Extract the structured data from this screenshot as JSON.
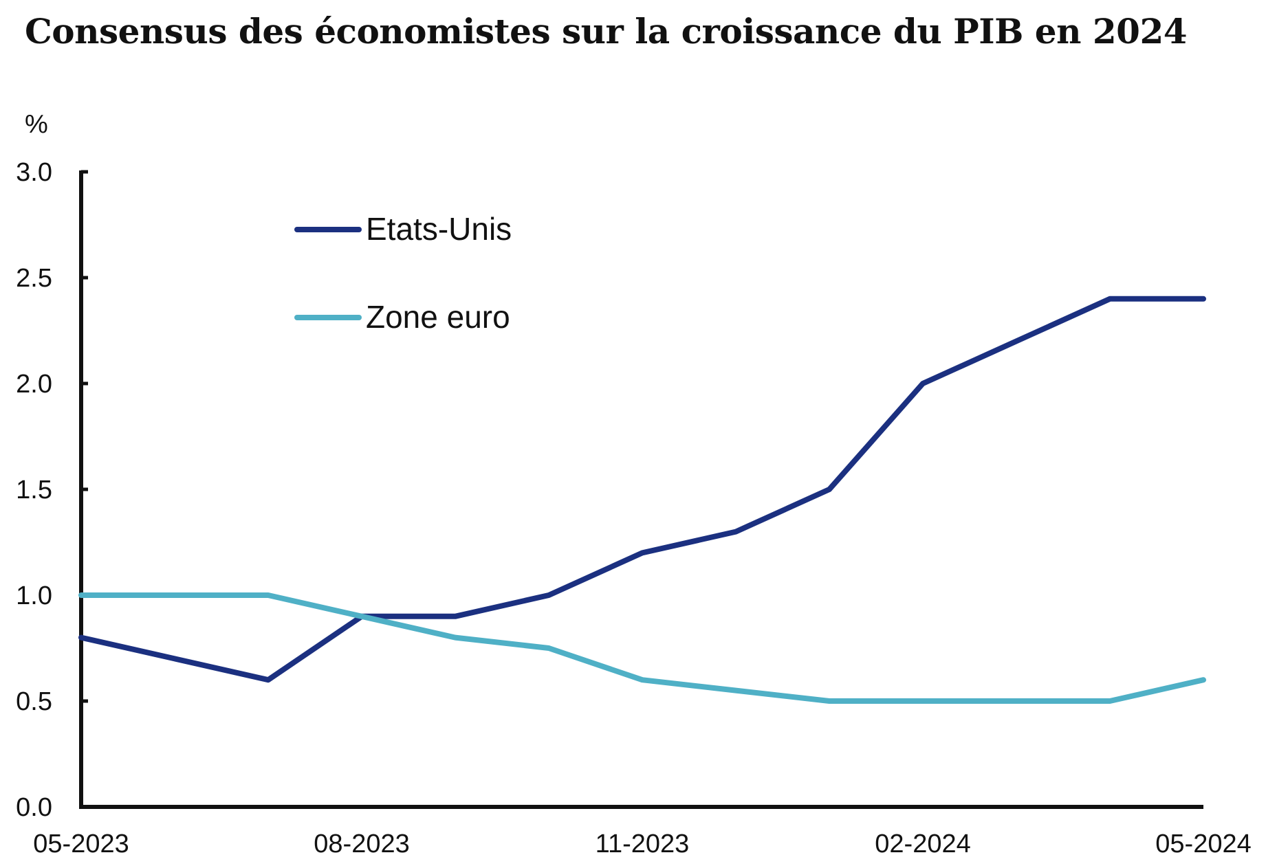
{
  "title": "Consensus des économistes sur la croissance du PIB en 2024",
  "colors": {
    "etats_unis": "#1b3080",
    "zone_euro": "#4fb0c6",
    "axis": "#111111"
  },
  "chart_data": {
    "type": "line",
    "title": "Consensus des économistes sur la croissance du PIB en 2024",
    "ylabel": "%",
    "xlabel": "",
    "x": [
      "05-2023",
      "06-2023",
      "07-2023",
      "08-2023",
      "09-2023",
      "10-2023",
      "11-2023",
      "12-2023",
      "01-2024",
      "02-2024",
      "03-2024",
      "04-2024",
      "05-2024"
    ],
    "x_tick_labels": [
      "05-2023",
      "08-2023",
      "11-2023",
      "02-2024",
      "05-2024"
    ],
    "ylim": [
      0,
      3
    ],
    "y_tick_labels": [
      "0.0",
      "0.5",
      "1.0",
      "1.5",
      "2.0",
      "2.5",
      "3.0"
    ],
    "grid": false,
    "legend_position": "top-left",
    "series": [
      {
        "name": "Etats-Unis",
        "color": "#1b3080",
        "values": [
          0.8,
          0.7,
          0.6,
          0.9,
          0.9,
          1.0,
          1.2,
          1.3,
          1.5,
          2.0,
          2.2,
          2.4,
          2.4
        ]
      },
      {
        "name": "Zone euro",
        "color": "#4fb0c6",
        "values": [
          1.0,
          1.0,
          1.0,
          0.9,
          0.8,
          0.75,
          0.6,
          0.55,
          0.5,
          0.5,
          0.5,
          0.5,
          0.6
        ]
      }
    ]
  }
}
